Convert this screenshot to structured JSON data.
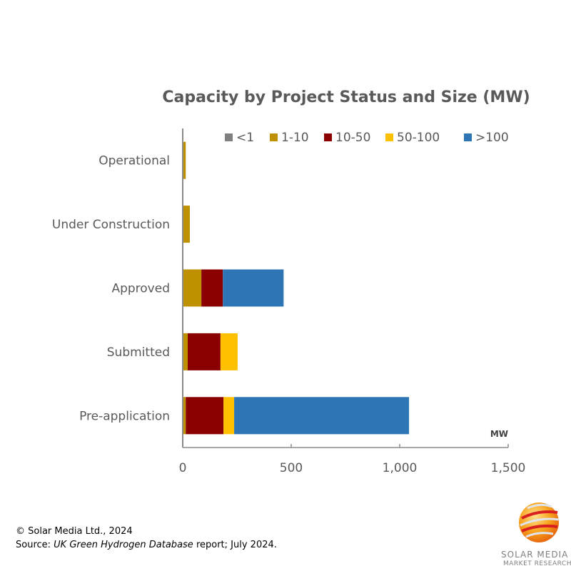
{
  "chart_data": {
    "type": "bar",
    "orientation": "horizontal",
    "stacked": true,
    "title": "Capacity by Project Status and Size (MW)",
    "xlabel": "MW",
    "ylabel": "",
    "xlim": [
      0,
      1500
    ],
    "xticks": [
      0,
      500,
      1000,
      1500
    ],
    "xtick_labels": [
      "0",
      "500",
      "1,000",
      "1,500"
    ],
    "grid": false,
    "legend_position": "top-right",
    "categories": [
      "Operational",
      "Under Construction",
      "Approved",
      "Submitted",
      "Pre-application"
    ],
    "series": [
      {
        "name": "<1",
        "color": "#7f7f7f",
        "values": [
          3,
          0,
          0,
          0,
          0
        ]
      },
      {
        "name": "1-10",
        "color": "#bf9000",
        "values": [
          11,
          33,
          86,
          23,
          14
        ]
      },
      {
        "name": "10-50",
        "color": "#8b0000",
        "values": [
          0,
          0,
          99,
          151,
          174
        ]
      },
      {
        "name": "50-100",
        "color": "#ffc000",
        "values": [
          0,
          0,
          0,
          79,
          49
        ]
      },
      {
        "name": ">100",
        "color": "#2e75b6",
        "values": [
          0,
          0,
          280,
          0,
          806
        ]
      }
    ]
  },
  "footer": {
    "copyright": "© Solar Media Ltd., 2024",
    "source_prefix": "Source: ",
    "source_title": "UK Green Hydrogen Database",
    "source_suffix": " report; July 2024."
  },
  "logo": {
    "line1": "SOLAR MEDIA",
    "line2": "MARKET RESEARCH"
  }
}
